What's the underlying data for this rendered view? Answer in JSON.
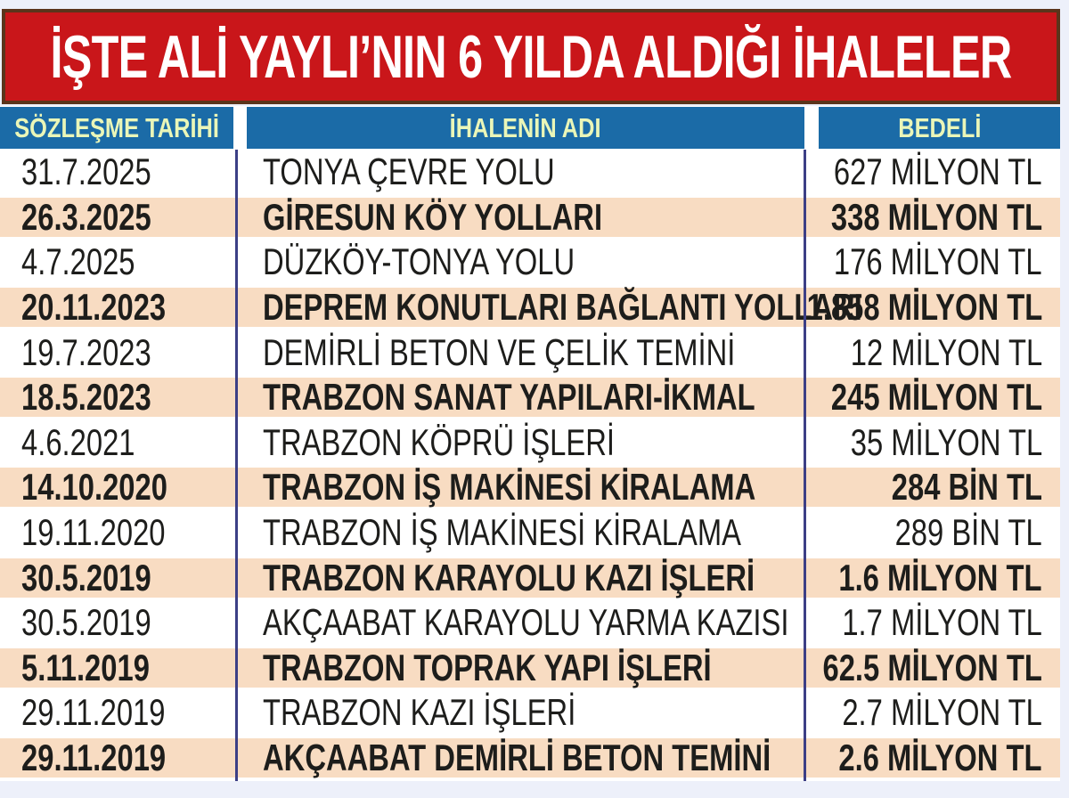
{
  "banner": {
    "title": "İŞTE ALİ YAYLI’NIN 6 YILDA ALDIĞI İHALELER",
    "bg_color": "#c9161a",
    "border_color": "#5b341b",
    "text_color": "#ffffff"
  },
  "table": {
    "header_bg": "#1b6ba7",
    "header_text_color": "#eaf6b8",
    "row_highlight_bg": "#f8dcc2",
    "row_plain_bg": "#ffffff",
    "divider_color": "#3c3f86",
    "page_bg": "#edf0fa",
    "columns": {
      "date_label": "SÖZLEŞME TARİHİ",
      "name_label": "İHALENİN ADI",
      "amount_label": "BEDELİ"
    },
    "rows": [
      {
        "date": "31.7.2025",
        "name": "TONYA ÇEVRE YOLU",
        "value": "627 MİLYON TL"
      },
      {
        "date": "26.3.2025",
        "name": "GİRESUN KÖY YOLLARI",
        "value": "338 MİLYON TL"
      },
      {
        "date": "4.7.2025",
        "name": "DÜZKÖY-TONYA YOLU",
        "value": "176 MİLYON TL"
      },
      {
        "date": "20.11.2023",
        "name": "DEPREM KONUTLARI BAĞLANTI YOLLARI",
        "value": "1.858 MİLYON TL"
      },
      {
        "date": "19.7.2023",
        "name": "DEMİRLİ BETON VE ÇELİK TEMİNİ",
        "value": "12 MİLYON TL"
      },
      {
        "date": "18.5.2023",
        "name": "TRABZON SANAT YAPILARI-İKMAL",
        "value": "245 MİLYON TL"
      },
      {
        "date": "4.6.2021",
        "name": "TRABZON KÖPRÜ İŞLERİ",
        "value": "35 MİLYON TL"
      },
      {
        "date": "14.10.2020",
        "name": "TRABZON İŞ MAKİNESİ KİRALAMA",
        "value": "284 BİN TL"
      },
      {
        "date": "19.11.2020",
        "name": "TRABZON İŞ MAKİNESİ KİRALAMA",
        "value": "289 BİN TL"
      },
      {
        "date": "30.5.2019",
        "name": "TRABZON KARAYOLU KAZI İŞLERİ",
        "value": "1.6 MİLYON TL"
      },
      {
        "date": "30.5.2019",
        "name": "AKÇAABAT KARAYOLU YARMA KAZISI",
        "value": "1.7 MİLYON TL"
      },
      {
        "date": "5.11.2019",
        "name": "TRABZON TOPRAK YAPI İŞLERİ",
        "value": "62.5 MİLYON TL"
      },
      {
        "date": "29.11.2019",
        "name": "TRABZON KAZI İŞLERİ",
        "value": "2.7 MİLYON TL"
      },
      {
        "date": "29.11.2019",
        "name": "AKÇAABAT DEMİRLİ BETON TEMİNİ",
        "value": "2.6 MİLYON TL"
      }
    ]
  },
  "chart_data": {
    "type": "table",
    "title": "İŞTE ALİ YAYLI’NIN 6 YILDA ALDIĞI İHALELER",
    "columns": [
      "SÖZLEŞME TARİHİ",
      "İHALENİN ADI",
      "BEDELİ"
    ],
    "rows": [
      [
        "31.7.2025",
        "TONYA ÇEVRE YOLU",
        "627 MİLYON TL"
      ],
      [
        "26.3.2025",
        "GİRESUN KÖY YOLLARI",
        "338 MİLYON TL"
      ],
      [
        "4.7.2025",
        "DÜZKÖY-TONYA YOLU",
        "176 MİLYON TL"
      ],
      [
        "20.11.2023",
        "DEPREM KONUTLARI BAĞLANTI YOLLARI",
        "1.858 MİLYON TL"
      ],
      [
        "19.7.2023",
        "DEMİRLİ BETON VE ÇELİK TEMİNİ",
        "12 MİLYON TL"
      ],
      [
        "18.5.2023",
        "TRABZON SANAT YAPILARI-İKMAL",
        "245 MİLYON TL"
      ],
      [
        "4.6.2021",
        "TRABZON KÖPRÜ İŞLERİ",
        "35 MİLYON TL"
      ],
      [
        "14.10.2020",
        "TRABZON İŞ MAKİNESİ KİRALAMA",
        "284 BİN TL"
      ],
      [
        "19.11.2020",
        "TRABZON İŞ MAKİNESİ KİRALAMA",
        "289 BİN TL"
      ],
      [
        "30.5.2019",
        "TRABZON KARAYOLU KAZI İŞLERİ",
        "1.6 MİLYON TL"
      ],
      [
        "30.5.2019",
        "AKÇAABAT KARAYOLU YARMA KAZISI",
        "1.7 MİLYON TL"
      ],
      [
        "5.11.2019",
        "TRABZON TOPRAK YAPI İŞLERİ",
        "62.5 MİLYON TL"
      ],
      [
        "29.11.2019",
        "TRABZON KAZI İŞLERİ",
        "2.7 MİLYON TL"
      ],
      [
        "29.11.2019",
        "AKÇAABAT DEMİRLİ BETON TEMİNİ",
        "2.6 MİLYON TL"
      ]
    ]
  }
}
